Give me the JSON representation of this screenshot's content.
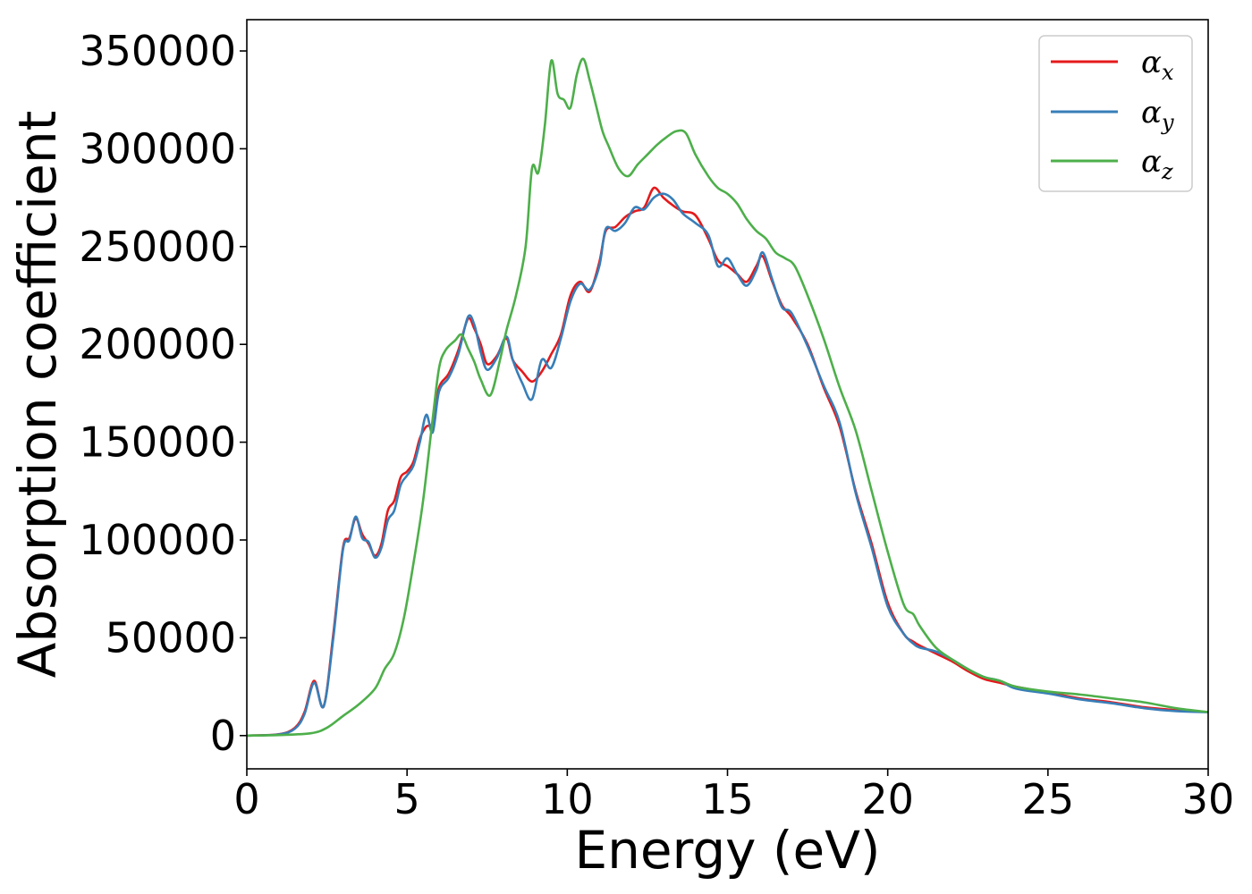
{
  "chart_data": {
    "type": "line",
    "title": "",
    "xlabel": "Energy (eV)",
    "ylabel": "Absorption coefficient",
    "xlim": [
      0,
      30
    ],
    "ylim": [
      -17000,
      366000
    ],
    "xticks": [
      0,
      5,
      10,
      15,
      20,
      25,
      30
    ],
    "yticks": [
      0,
      50000,
      100000,
      150000,
      200000,
      250000,
      300000,
      350000
    ],
    "xtick_labels": [
      "0",
      "5",
      "10",
      "15",
      "20",
      "25",
      "30"
    ],
    "ytick_labels": [
      "0",
      "50000",
      "100000",
      "150000",
      "200000",
      "250000",
      "300000",
      "350000"
    ],
    "grid": false,
    "legend_position": "top-right",
    "legend": [
      {
        "symbol": "α",
        "subscript": "x"
      },
      {
        "symbol": "α",
        "subscript": "y"
      },
      {
        "symbol": "α",
        "subscript": "z"
      }
    ],
    "series": [
      {
        "name": "αx",
        "color": "#e41a1c",
        "x": [
          0,
          1,
          1.5,
          1.8,
          2.1,
          2.4,
          2.7,
          3.0,
          3.2,
          3.4,
          3.6,
          3.8,
          4.0,
          4.2,
          4.4,
          4.6,
          4.8,
          5.0,
          5.2,
          5.4,
          5.6,
          5.8,
          6.0,
          6.3,
          6.6,
          6.9,
          7.1,
          7.3,
          7.5,
          7.8,
          8.1,
          8.3,
          8.6,
          8.9,
          9.2,
          9.5,
          9.8,
          10.1,
          10.4,
          10.7,
          11.0,
          11.2,
          11.5,
          11.8,
          12.1,
          12.4,
          12.7,
          13.0,
          13.3,
          13.6,
          14.0,
          14.4,
          14.7,
          15.0,
          15.3,
          15.6,
          15.9,
          16.1,
          16.4,
          16.7,
          17.0,
          17.5,
          18.0,
          18.5,
          19.0,
          19.5,
          20.0,
          20.5,
          20.8,
          21.0,
          21.5,
          22.0,
          22.5,
          23.0,
          23.5,
          24.0,
          25.0,
          26.0,
          27.0,
          28.0,
          29.0,
          30.0
        ],
        "y": [
          0,
          700,
          4000,
          12000,
          28000,
          15000,
          52000,
          96000,
          101000,
          111000,
          103000,
          98000,
          92000,
          98000,
          115000,
          120000,
          132000,
          135000,
          140000,
          152000,
          158000,
          160000,
          178000,
          185000,
          197000,
          213000,
          208000,
          200000,
          190000,
          194000,
          203000,
          192000,
          186000,
          181000,
          186000,
          195000,
          205000,
          225000,
          232000,
          227000,
          242000,
          258000,
          260000,
          265000,
          268000,
          270000,
          280000,
          275000,
          271000,
          268000,
          266000,
          254000,
          243000,
          240000,
          236000,
          232000,
          240000,
          245000,
          232000,
          220000,
          214000,
          200000,
          178000,
          158000,
          125000,
          98000,
          68000,
          52000,
          48000,
          46000,
          42000,
          38000,
          33000,
          29000,
          27000,
          25000,
          22000,
          19000,
          17000,
          14500,
          13000,
          12000
        ]
      },
      {
        "name": "αy",
        "color": "#377eb8",
        "x": [
          0,
          1,
          1.5,
          1.8,
          2.1,
          2.4,
          2.7,
          3.0,
          3.2,
          3.4,
          3.6,
          3.8,
          4.0,
          4.2,
          4.4,
          4.6,
          4.8,
          5.0,
          5.2,
          5.4,
          5.6,
          5.8,
          6.0,
          6.3,
          6.6,
          6.9,
          7.1,
          7.3,
          7.5,
          7.8,
          8.1,
          8.3,
          8.6,
          8.9,
          9.2,
          9.5,
          9.8,
          10.1,
          10.4,
          10.7,
          11.0,
          11.2,
          11.5,
          11.8,
          12.1,
          12.4,
          12.7,
          13.0,
          13.3,
          13.6,
          14.0,
          14.4,
          14.7,
          15.0,
          15.3,
          15.6,
          15.9,
          16.1,
          16.4,
          16.7,
          17.0,
          17.5,
          18.0,
          18.5,
          19.0,
          19.5,
          20.0,
          20.5,
          20.8,
          21.0,
          21.5,
          22.0,
          22.5,
          23.0,
          23.5,
          24.0,
          25.0,
          26.0,
          27.0,
          28.0,
          29.0,
          30.0
        ],
        "y": [
          0,
          600,
          3500,
          11000,
          27000,
          15000,
          50000,
          95000,
          100000,
          112000,
          101000,
          99000,
          91000,
          96000,
          110000,
          115000,
          128000,
          133000,
          138000,
          150000,
          164000,
          155000,
          176000,
          183000,
          195000,
          214000,
          210000,
          196000,
          187000,
          193000,
          204000,
          192000,
          180000,
          172000,
          192000,
          188000,
          203000,
          222000,
          231000,
          228000,
          240000,
          259000,
          258000,
          262000,
          270000,
          269000,
          275000,
          277000,
          274000,
          267000,
          262000,
          256000,
          240000,
          244000,
          236000,
          230000,
          238000,
          247000,
          233000,
          219000,
          216000,
          199000,
          179000,
          160000,
          124000,
          96000,
          66000,
          52000,
          47000,
          45000,
          43000,
          39000,
          34000,
          30000,
          28000,
          24000,
          21500,
          18500,
          16500,
          14000,
          12500,
          12000
        ]
      },
      {
        "name": "αz",
        "color": "#4daf4a",
        "x": [
          0,
          1,
          2,
          2.5,
          3.0,
          3.5,
          4.0,
          4.3,
          4.6,
          4.9,
          5.2,
          5.5,
          5.8,
          6.0,
          6.2,
          6.5,
          6.7,
          6.9,
          7.1,
          7.3,
          7.6,
          7.9,
          8.1,
          8.4,
          8.7,
          8.9,
          9.1,
          9.3,
          9.5,
          9.7,
          9.9,
          10.1,
          10.3,
          10.5,
          10.7,
          10.9,
          11.1,
          11.3,
          11.6,
          11.9,
          12.2,
          12.5,
          12.8,
          13.1,
          13.4,
          13.7,
          14.0,
          14.4,
          14.7,
          15.0,
          15.3,
          15.6,
          15.9,
          16.2,
          16.5,
          16.8,
          17.1,
          17.5,
          18.0,
          18.5,
          19.0,
          19.5,
          20.0,
          20.5,
          20.8,
          21.0,
          21.5,
          22.0,
          22.5,
          23.0,
          23.5,
          24.0,
          25.0,
          26.0,
          27.0,
          28.0,
          29.0,
          30.0
        ],
        "y": [
          0,
          300,
          1200,
          4000,
          10000,
          16000,
          24000,
          34000,
          42000,
          60000,
          88000,
          120000,
          162000,
          188000,
          197000,
          202000,
          205000,
          198000,
          191000,
          182000,
          174000,
          192000,
          207000,
          225000,
          250000,
          290000,
          288000,
          312000,
          345000,
          328000,
          325000,
          321000,
          338000,
          346000,
          335000,
          322000,
          309000,
          301000,
          290000,
          286000,
          292000,
          297000,
          302000,
          306000,
          309000,
          308000,
          297000,
          286000,
          280000,
          277000,
          272000,
          264000,
          258000,
          254000,
          247000,
          244000,
          240000,
          225000,
          203000,
          178000,
          156000,
          125000,
          94000,
          67000,
          62000,
          56000,
          45000,
          39000,
          34000,
          30000,
          28000,
          25000,
          22500,
          21000,
          19000,
          17000,
          14000,
          12000
        ]
      }
    ]
  }
}
